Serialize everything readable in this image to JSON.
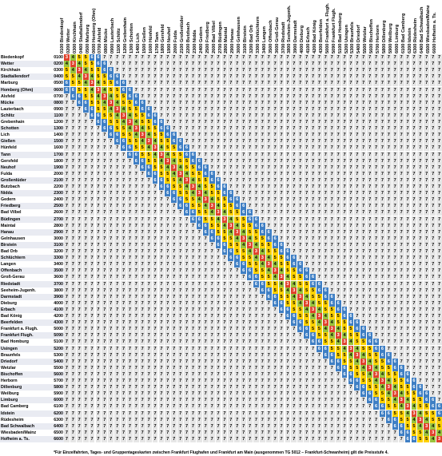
{
  "table": {
    "zones": [
      {
        "code": "0100",
        "name": "Biedenkopf"
      },
      {
        "code": "0200",
        "name": "Wetter"
      },
      {
        "code": "0300",
        "name": "Kirchhain"
      },
      {
        "code": "0400",
        "name": "Stadtallendorf"
      },
      {
        "code": "0500",
        "name": "Marburg"
      },
      {
        "code": "0600",
        "name": "Homberg (Ohm)"
      },
      {
        "code": "0700",
        "name": "Alsfeld"
      },
      {
        "code": "0800",
        "name": "Mücke"
      },
      {
        "code": "0900",
        "name": "Lauterbach"
      },
      {
        "code": "1100",
        "name": "Schlitz"
      },
      {
        "code": "1200",
        "name": "Grebenhain"
      },
      {
        "code": "1300",
        "name": "Schotten"
      },
      {
        "code": "1400",
        "name": "Lich"
      },
      {
        "code": "1500",
        "name": "Gießen"
      },
      {
        "code": "1600",
        "name": "Hünfeld"
      },
      {
        "code": "1700",
        "name": "Tann"
      },
      {
        "code": "1800",
        "name": "Gersfeld"
      },
      {
        "code": "1900",
        "name": "Neuhof"
      },
      {
        "code": "2000",
        "name": "Fulda"
      },
      {
        "code": "2100",
        "name": "Großenlüder"
      },
      {
        "code": "2200",
        "name": "Butzbach"
      },
      {
        "code": "2300",
        "name": "Nidda"
      },
      {
        "code": "2400",
        "name": "Gedern"
      },
      {
        "code": "2500",
        "name": "Friedberg"
      },
      {
        "code": "2600",
        "name": "Bad Vilbel"
      },
      {
        "code": "2700",
        "name": "Büdingen"
      },
      {
        "code": "2800",
        "name": "Maintal"
      },
      {
        "code": "2900",
        "name": "Hanau"
      },
      {
        "code": "3000",
        "name": "Gelnhausen"
      },
      {
        "code": "3100",
        "name": "Birstein"
      },
      {
        "code": "3200",
        "name": "Bad Orb"
      },
      {
        "code": "3300",
        "name": "Schlüchtern"
      },
      {
        "code": "3400",
        "name": "Langen"
      },
      {
        "code": "3500",
        "name": "Offenbach"
      },
      {
        "code": "3600",
        "name": "Groß-Gerau"
      },
      {
        "code": "3700",
        "name": "Riedstadt"
      },
      {
        "code": "3800",
        "name": "Seeheim-Jugenh."
      },
      {
        "code": "3900",
        "name": "Darmstadt"
      },
      {
        "code": "4000",
        "name": "Dieburg"
      },
      {
        "code": "4100",
        "name": "Erbach"
      },
      {
        "code": "4200",
        "name": "Bad König"
      },
      {
        "code": "4300",
        "name": "Beerfelden"
      },
      {
        "code": "5000",
        "name": "Frankfurt a. Flugh."
      },
      {
        "code": "5090",
        "name": "Frankfurt Flugh."
      },
      {
        "code": "5100",
        "name": "Bad Homburg"
      },
      {
        "code": "5200",
        "name": "Usingen"
      },
      {
        "code": "5300",
        "name": "Braunfels"
      },
      {
        "code": "5400",
        "name": "Driedorf"
      },
      {
        "code": "5500",
        "name": "Wetzlar"
      },
      {
        "code": "5600",
        "name": "Bischoffen"
      },
      {
        "code": "5700",
        "name": "Herborn"
      },
      {
        "code": "5800",
        "name": "Dillenburg"
      },
      {
        "code": "5900",
        "name": "Weilburg"
      },
      {
        "code": "6000",
        "name": "Limburg"
      },
      {
        "code": "6100",
        "name": "Bad Camberg"
      },
      {
        "code": "6200",
        "name": "Idstein"
      },
      {
        "code": "6300",
        "name": "Rüdesheim"
      },
      {
        "code": "6400",
        "name": "Bad Schwalbach"
      },
      {
        "code": "6500",
        "name": "Wiesbaden/Mainz"
      },
      {
        "code": "6600",
        "name": "Hofheim a. Ts."
      }
    ],
    "colors": {
      "level3": "#e0422c",
      "level4": "#9ac33c",
      "level5": "#ffd200",
      "level6": "#3f7fc4",
      "level7": "#e6e6e6"
    }
  },
  "footnote": "*Für Einzelfahrten, Tages- und Gruppentageskarten zwischen Frankfurt Flughafen und Frankfurt am Main (ausgenommen TG 5012 – Frankfurt-Schwanheim) gilt die Preisstufe 4."
}
